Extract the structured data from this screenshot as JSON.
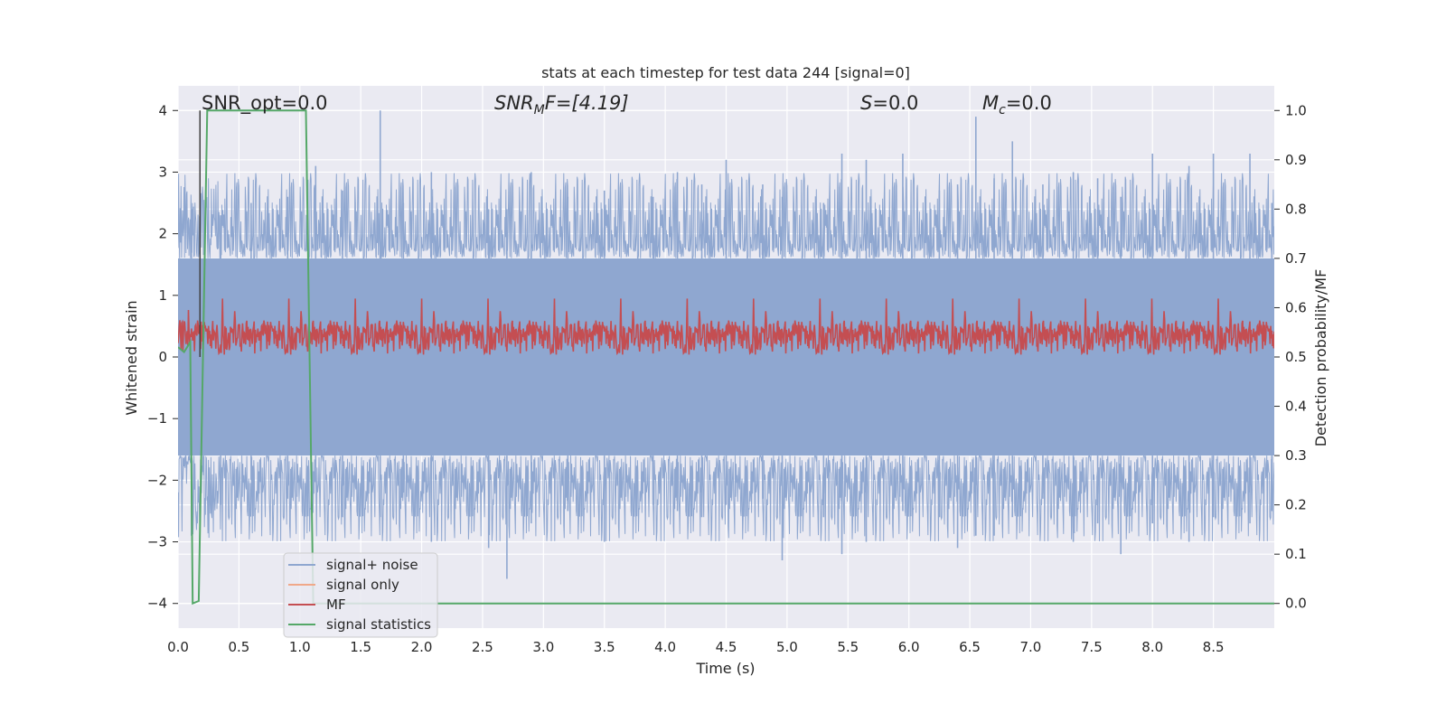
{
  "chart_data": {
    "type": "line",
    "title": "stats at each timestep for test data 244 [signal=0]",
    "xlabel": "Time (s)",
    "ylabel": "Whitened strain",
    "ylabel_right": "Detection probability/MF",
    "xlim": [
      0.0,
      9.0
    ],
    "ylim": [
      -4.4,
      4.4
    ],
    "ylim_right": [
      -0.05,
      1.05
    ],
    "xticks": [
      "0.0",
      "0.5",
      "1.0",
      "1.5",
      "2.0",
      "2.5",
      "3.0",
      "3.5",
      "4.0",
      "4.5",
      "5.0",
      "5.5",
      "6.0",
      "6.5",
      "7.0",
      "7.5",
      "8.0",
      "8.5"
    ],
    "xtick_values": [
      0.0,
      0.5,
      1.0,
      1.5,
      2.0,
      2.5,
      3.0,
      3.5,
      4.0,
      4.5,
      5.0,
      5.5,
      6.0,
      6.5,
      7.0,
      7.5,
      8.0,
      8.5
    ],
    "yticks": [
      "−4",
      "−3",
      "−2",
      "−1",
      "0",
      "1",
      "2",
      "3",
      "4"
    ],
    "ytick_values": [
      -4,
      -3,
      -2,
      -1,
      0,
      1,
      2,
      3,
      4
    ],
    "yticks_right": [
      "0.0",
      "0.1",
      "0.2",
      "0.3",
      "0.4",
      "0.5",
      "0.6",
      "0.7",
      "0.8",
      "0.9",
      "1.0"
    ],
    "ytick_values_right": [
      0.0,
      0.1,
      0.2,
      0.3,
      0.4,
      0.5,
      0.6,
      0.7,
      0.8,
      0.9,
      1.0
    ],
    "grid": true,
    "legend_position": "lower-left",
    "annotations": {
      "snr_opt": "SNR_opt=0.0",
      "snr_mf_main": "SNR",
      "snr_mf_sub": "M",
      "snr_mf_rest": "F=[4.19]",
      "s_main": "S",
      "s_rest": "=0.0",
      "mc_main": "M",
      "mc_sub": "c",
      "mc_rest": "=0.0"
    },
    "series": [
      {
        "name": "signal+ noise",
        "color": "#8fa7d0",
        "axis": "left",
        "description_values": {
          "band_low": -1.6,
          "band_high": 1.6,
          "peak_max": 4.0,
          "peak_min": -3.6,
          "spikes": [
            [
              0.11,
              2.4,
              -2.9
            ],
            [
              0.35,
              2.3,
              -2.4
            ],
            [
              0.6,
              2.5,
              -2.0
            ],
            [
              0.9,
              2.6,
              -2.3
            ],
            [
              1.13,
              3.1,
              -1.8
            ],
            [
              1.35,
              2.7,
              -2.6
            ],
            [
              1.66,
              4.0,
              -2.6
            ],
            [
              1.85,
              2.5,
              -2.2
            ],
            [
              2.08,
              3.0,
              -3.0
            ],
            [
              2.55,
              2.4,
              -3.1
            ],
            [
              2.7,
              2.4,
              -3.6
            ],
            [
              2.9,
              3.0,
              -2.7
            ],
            [
              3.2,
              2.6,
              -2.5
            ],
            [
              3.5,
              2.7,
              -3.0
            ],
            [
              3.9,
              2.6,
              -2.4
            ],
            [
              4.1,
              3.0,
              -2.5
            ],
            [
              4.3,
              2.8,
              -2.6
            ],
            [
              4.5,
              3.2,
              -2.4
            ],
            [
              4.8,
              2.8,
              -2.3
            ],
            [
              4.96,
              2.6,
              -3.3
            ],
            [
              5.3,
              2.5,
              -2.6
            ],
            [
              5.45,
              3.3,
              -3.2
            ],
            [
              5.65,
              3.2,
              -3.0
            ],
            [
              5.95,
              3.3,
              -2.5
            ],
            [
              6.25,
              2.7,
              -2.6
            ],
            [
              6.4,
              2.8,
              -3.1
            ],
            [
              6.55,
              3.9,
              -2.9
            ],
            [
              6.7,
              2.9,
              -2.9
            ],
            [
              6.85,
              3.5,
              -2.6
            ],
            [
              7.1,
              2.8,
              -2.3
            ],
            [
              7.35,
              3.0,
              -3.0
            ],
            [
              7.55,
              2.9,
              -2.7
            ],
            [
              7.74,
              2.6,
              -3.2
            ],
            [
              8.0,
              3.3,
              -2.7
            ],
            [
              8.3,
              3.1,
              -3.0
            ],
            [
              8.5,
              3.3,
              -2.6
            ],
            [
              8.8,
              3.3,
              -2.7
            ],
            [
              8.98,
              2.5,
              -2.5
            ]
          ]
        }
      },
      {
        "name": "signal only",
        "color": "#f0a889",
        "axis": "left",
        "values": []
      },
      {
        "name": "MF",
        "color": "#c44e52",
        "axis": "right",
        "description_values": {
          "band_low": 0.505,
          "band_high": 0.575,
          "peak_max": 0.62,
          "peak_min": 0.5
        }
      },
      {
        "name": "signal statistics",
        "color": "#55a868",
        "axis": "right",
        "x": [
          0.0,
          0.05,
          0.1,
          0.12,
          0.17,
          0.24,
          0.25,
          1.05,
          1.11,
          1.12,
          9.0
        ],
        "values": [
          0.52,
          0.51,
          0.53,
          0.0,
          0.005,
          1.0,
          1.0,
          1.0,
          0.0,
          0.0,
          0.0
        ]
      }
    ],
    "vertical_marker": {
      "x": 0.18,
      "color": "#404040"
    }
  }
}
